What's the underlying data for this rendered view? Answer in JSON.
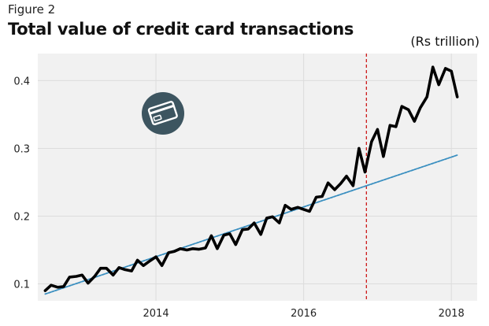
{
  "figure_label": "Figure 2",
  "chart_data": {
    "type": "line",
    "title": "Total value of credit card transactions",
    "unit_label": "(Rs trillion)",
    "xlabel": "",
    "ylabel": "",
    "xlim": [
      2012.4,
      2018.35
    ],
    "ylim": [
      0.075,
      0.44
    ],
    "y_ticks": [
      0.1,
      0.2,
      0.3,
      0.4
    ],
    "y_tick_labels": [
      "0.1",
      "0.2",
      "0.3",
      "0.4"
    ],
    "x_ticks": [
      2014,
      2016,
      2018
    ],
    "x_tick_labels": [
      "2014",
      "2016",
      "2018"
    ],
    "grid": true,
    "vertical_marker_x": 2016.85,
    "series": [
      {
        "role": "actual",
        "color": "#000000",
        "x": [
          2012.5,
          2012.58,
          2012.67,
          2012.75,
          2012.83,
          2012.92,
          2013.0,
          2013.08,
          2013.17,
          2013.25,
          2013.33,
          2013.42,
          2013.5,
          2013.58,
          2013.67,
          2013.75,
          2013.83,
          2013.92,
          2014.0,
          2014.08,
          2014.17,
          2014.25,
          2014.33,
          2014.42,
          2014.5,
          2014.58,
          2014.67,
          2014.75,
          2014.83,
          2014.92,
          2015.0,
          2015.08,
          2015.17,
          2015.25,
          2015.33,
          2015.42,
          2015.5,
          2015.58,
          2015.67,
          2015.75,
          2015.83,
          2015.92,
          2016.0,
          2016.08,
          2016.17,
          2016.25,
          2016.33,
          2016.42,
          2016.5,
          2016.58,
          2016.67,
          2016.75,
          2016.83,
          2016.92,
          2017.0,
          2017.08,
          2017.17,
          2017.25,
          2017.33,
          2017.42,
          2017.5,
          2017.58,
          2017.67,
          2017.75,
          2017.83,
          2017.92,
          2018.0,
          2018.08
        ],
        "values": [
          0.09,
          0.098,
          0.095,
          0.096,
          0.11,
          0.111,
          0.113,
          0.101,
          0.111,
          0.123,
          0.123,
          0.113,
          0.124,
          0.121,
          0.119,
          0.135,
          0.127,
          0.134,
          0.14,
          0.127,
          0.146,
          0.148,
          0.152,
          0.15,
          0.152,
          0.151,
          0.153,
          0.171,
          0.152,
          0.172,
          0.174,
          0.158,
          0.18,
          0.181,
          0.19,
          0.173,
          0.197,
          0.199,
          0.19,
          0.216,
          0.21,
          0.213,
          0.21,
          0.207,
          0.228,
          0.229,
          0.249,
          0.239,
          0.248,
          0.259,
          0.245,
          0.3,
          0.265,
          0.31,
          0.328,
          0.288,
          0.334,
          0.332,
          0.362,
          0.357,
          0.34,
          0.36,
          0.376,
          0.42,
          0.394,
          0.418,
          0.414,
          0.376
        ]
      },
      {
        "role": "trend",
        "color": "#3a8fc0",
        "x": [
          2012.5,
          2018.08
        ],
        "values": [
          0.085,
          0.29
        ]
      }
    ]
  },
  "colors": {
    "grid": "#dcdcdc",
    "plot_background": "#f1f1f1",
    "marker_line": "#cc1a1a",
    "icon_circle": "#3d5560",
    "icon_card": "#ffffff"
  },
  "icon": "credit-card-icon"
}
